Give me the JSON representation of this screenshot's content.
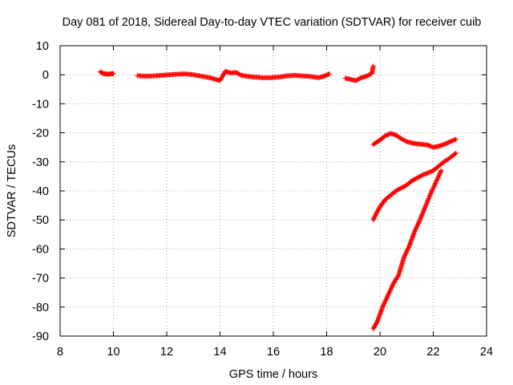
{
  "chart_data": {
    "type": "scatter",
    "title": "Day 081 of 2018, Sidereal Day-to-day VTEC variation (SDTVAR) for receiver cuib",
    "xlabel": "GPS time / hours",
    "ylabel": "SDTVAR / TECUs",
    "xlim": [
      8,
      24
    ],
    "ylim": [
      -90,
      10
    ],
    "xticks": [
      8,
      10,
      12,
      14,
      16,
      18,
      20,
      22,
      24
    ],
    "yticks": [
      10,
      0,
      -10,
      -20,
      -30,
      -40,
      -50,
      -60,
      -70,
      -80,
      -90
    ],
    "grid": true,
    "marker": "plus",
    "color": "#ff0000",
    "series": [
      {
        "points": [
          [
            9.5,
            1.0
          ],
          [
            9.6,
            0.5
          ],
          [
            9.7,
            0.3
          ],
          [
            9.8,
            0.2
          ],
          [
            9.9,
            0.3
          ],
          [
            10.0,
            0.4
          ],
          [
            10.9,
            -0.3
          ],
          [
            11.2,
            -0.5
          ],
          [
            11.5,
            -0.4
          ],
          [
            11.8,
            -0.2
          ],
          [
            12.1,
            0.0
          ],
          [
            12.4,
            0.2
          ],
          [
            12.7,
            0.3
          ],
          [
            13.0,
            0.0
          ],
          [
            13.3,
            -0.5
          ],
          [
            13.6,
            -1.0
          ],
          [
            13.8,
            -1.5
          ],
          [
            14.0,
            -2.0
          ],
          [
            14.2,
            1.2
          ],
          [
            14.4,
            0.6
          ],
          [
            14.6,
            0.8
          ],
          [
            14.8,
            -0.2
          ],
          [
            15.0,
            -0.5
          ],
          [
            15.3,
            -0.8
          ],
          [
            15.6,
            -1.0
          ],
          [
            15.9,
            -1.0
          ],
          [
            16.2,
            -0.8
          ],
          [
            16.5,
            -0.4
          ],
          [
            16.8,
            -0.2
          ],
          [
            17.1,
            -0.4
          ],
          [
            17.4,
            -0.6
          ],
          [
            17.7,
            -1.0
          ],
          [
            17.9,
            -0.5
          ],
          [
            18.1,
            0.3
          ],
          [
            18.7,
            -1.2
          ],
          [
            18.9,
            -1.6
          ],
          [
            19.1,
            -2.0
          ],
          [
            19.3,
            -1.0
          ],
          [
            19.5,
            -0.5
          ],
          [
            19.7,
            0.5
          ],
          [
            19.75,
            3.0
          ]
        ]
      },
      {
        "points": [
          [
            19.75,
            -24.0
          ],
          [
            20.0,
            -22.5
          ],
          [
            20.2,
            -21.0
          ],
          [
            20.4,
            -20.2
          ],
          [
            20.6,
            -20.8
          ],
          [
            20.8,
            -22.0
          ],
          [
            21.0,
            -23.0
          ],
          [
            21.2,
            -23.5
          ],
          [
            21.4,
            -23.8
          ],
          [
            21.6,
            -24.0
          ],
          [
            21.8,
            -24.2
          ],
          [
            22.0,
            -25.0
          ],
          [
            22.2,
            -24.6
          ],
          [
            22.4,
            -24.0
          ],
          [
            22.6,
            -23.2
          ],
          [
            22.85,
            -22.2
          ]
        ]
      },
      {
        "points": [
          [
            19.75,
            -50.0
          ],
          [
            19.85,
            -48.0
          ],
          [
            20.0,
            -45.5
          ],
          [
            20.2,
            -43.0
          ],
          [
            20.4,
            -41.5
          ],
          [
            20.6,
            -40.0
          ],
          [
            20.8,
            -39.0
          ],
          [
            21.0,
            -38.0
          ],
          [
            21.2,
            -36.5
          ],
          [
            21.4,
            -35.5
          ],
          [
            21.6,
            -34.5
          ],
          [
            21.8,
            -33.8
          ],
          [
            22.0,
            -33.0
          ],
          [
            22.2,
            -31.5
          ],
          [
            22.4,
            -30.0
          ],
          [
            22.6,
            -28.8
          ],
          [
            22.85,
            -27.0
          ]
        ]
      },
      {
        "points": [
          [
            19.75,
            -87.5
          ],
          [
            19.9,
            -85.0
          ],
          [
            20.1,
            -80.0
          ],
          [
            20.3,
            -76.0
          ],
          [
            20.5,
            -72.0
          ],
          [
            20.7,
            -69.0
          ],
          [
            20.9,
            -63.0
          ],
          [
            21.1,
            -59.0
          ],
          [
            21.3,
            -54.0
          ],
          [
            21.5,
            -50.0
          ],
          [
            21.7,
            -45.5
          ],
          [
            21.9,
            -41.0
          ],
          [
            22.1,
            -37.0
          ],
          [
            22.3,
            -33.0
          ]
        ]
      }
    ]
  }
}
